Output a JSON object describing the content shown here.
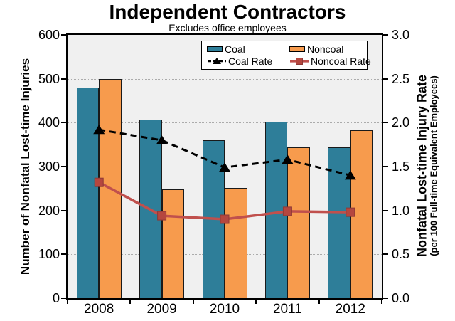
{
  "title": "Independent Contractors",
  "subtitle": "Excludes office employees",
  "chart_data": {
    "type": "bar",
    "subtype": "grouped-bars-with-overlay-lines",
    "categories": [
      "2008",
      "2009",
      "2010",
      "2011",
      "2012"
    ],
    "bar_series": [
      {
        "name": "Coal",
        "color": "#2e7e99",
        "axis": "left",
        "values": [
          480,
          407,
          360,
          402,
          343
        ]
      },
      {
        "name": "Noncoal",
        "color": "#f79b4d",
        "axis": "left",
        "values": [
          500,
          248,
          252,
          343,
          382
        ]
      }
    ],
    "line_series": [
      {
        "name": "Coal Rate",
        "color": "#000000",
        "line_style": "dashed",
        "marker": "triangle",
        "marker_color": "#000000",
        "axis": "right",
        "values": [
          1.92,
          1.8,
          1.49,
          1.58,
          1.4
        ]
      },
      {
        "name": "Noncoal Rate",
        "color": "#c0504d",
        "line_style": "solid",
        "marker": "square",
        "marker_color": "#b5473f",
        "axis": "right",
        "values": [
          1.32,
          0.94,
          0.9,
          0.99,
          0.98
        ]
      }
    ],
    "left_axis": {
      "title": "Number of Nonfatal Lost-time Injuries",
      "min": 0,
      "max": 600,
      "step": 100,
      "tick_labels": [
        "0",
        "100",
        "200",
        "300",
        "400",
        "500",
        "600"
      ]
    },
    "right_axis": {
      "title": "Nonfatal Lost-time Injury Rate",
      "subtitle": "(per 100 Full-time Equivalent Employees)",
      "min": 0,
      "max": 3.0,
      "step": 0.5,
      "tick_labels": [
        "0.0",
        "0.5",
        "1.0",
        "1.5",
        "2.0",
        "2.5",
        "3.0"
      ]
    },
    "x_axis": {
      "tick_labels": [
        "2008",
        "2009",
        "2010",
        "2011",
        "2012"
      ]
    },
    "legend": {
      "entries": [
        "Coal",
        "Noncoal",
        "Coal Rate",
        "Noncoal Rate"
      ],
      "position": "top-center-inside"
    },
    "grid": "horizontal-dotted",
    "plot_background": "#f0f0f0",
    "gridline_color": "#ababab",
    "bar_outline_color": "#1a1a1a"
  }
}
